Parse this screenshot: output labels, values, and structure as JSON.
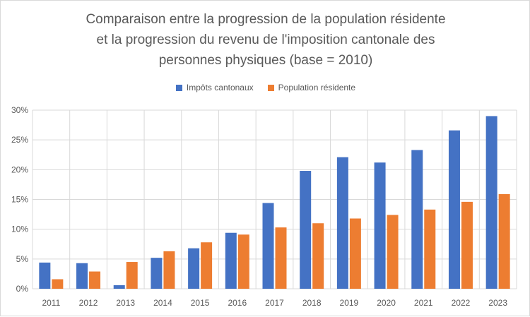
{
  "chart_data": {
    "type": "bar",
    "title_lines": [
      "Comparaison entre la progression de la population résidente",
      "et la progression du revenu de l'imposition cantonale des",
      "personnes physiques (base = 2010)"
    ],
    "categories": [
      "2011",
      "2012",
      "2013",
      "2014",
      "2015",
      "2016",
      "2017",
      "2018",
      "2019",
      "2020",
      "2021",
      "2022",
      "2023"
    ],
    "series": [
      {
        "name": "Impôts cantonaux",
        "color": "#4472c4",
        "values": [
          4.4,
          4.3,
          0.6,
          5.2,
          6.8,
          9.4,
          14.4,
          19.8,
          22.1,
          21.2,
          23.3,
          26.6,
          29.0
        ]
      },
      {
        "name": "Population résidente",
        "color": "#ed7d31",
        "values": [
          1.6,
          2.9,
          4.5,
          6.3,
          7.8,
          9.1,
          10.3,
          11.0,
          11.8,
          12.4,
          13.3,
          14.6,
          15.9
        ]
      }
    ],
    "yticks": [
      "0%",
      "5%",
      "10%",
      "15%",
      "20%",
      "25%",
      "30%"
    ],
    "ylim": [
      0,
      30
    ],
    "grid": true,
    "legend_position": "top"
  }
}
